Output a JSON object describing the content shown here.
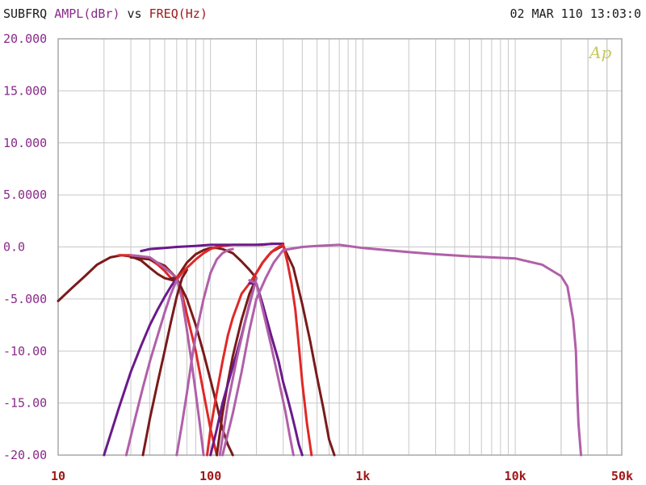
{
  "header": {
    "title_prefix": "SUBFRQ",
    "y_quantity": "AMPL(dBr)",
    "vs": "vs",
    "x_quantity": "FREQ(Hz)",
    "datetime": "02 MAR 110 13:03:0"
  },
  "logo_text": "Ap",
  "colors": {
    "dark_red": "#7a1a1a",
    "red": "#e02828",
    "purple": "#6a1a8a",
    "light_purple": "#b060a8",
    "grid": "#c8c8c8",
    "ytick": "#8a2a8a",
    "xtick": "#a01818"
  },
  "chart_data": {
    "type": "line",
    "title": "SUBFRQ AMPL(dBr) vs FREQ(Hz)",
    "xlabel": "FREQ(Hz)",
    "ylabel": "AMPL(dBr)",
    "xscale": "log",
    "xlim": [
      10,
      50000
    ],
    "ylim": [
      -20,
      20
    ],
    "grid": true,
    "y_tick_labels": [
      "20.000",
      "15.000",
      "10.000",
      "5.0000",
      "0.0",
      "-5.000",
      "-10.00",
      "-15.00",
      "-20.00"
    ],
    "y_tick_values": [
      20,
      15,
      10,
      5,
      0,
      -5,
      -10,
      -15,
      -20
    ],
    "x_tick_labels": [
      "10",
      "100",
      "1k",
      "10k",
      "50k"
    ],
    "x_tick_values": [
      10,
      100,
      1000,
      10000,
      50000
    ],
    "series": [
      {
        "color": "#7a1a1a",
        "x": [
          10,
          12,
          15,
          18,
          22,
          26,
          30,
          35,
          40,
          45,
          50,
          60
        ],
        "y": [
          -5.2,
          -4.1,
          -2.8,
          -1.7,
          -1.0,
          -0.8,
          -0.9,
          -1.3,
          -2.0,
          -2.6,
          -3.0,
          -3.3
        ]
      },
      {
        "color": "#e02828",
        "x": [
          25,
          30,
          35,
          40,
          45,
          50,
          55,
          60,
          65,
          70,
          80,
          90,
          100,
          110
        ],
        "y": [
          -0.8,
          -0.8,
          -0.9,
          -1.2,
          -1.7,
          -2.3,
          -3.0,
          -3.0,
          -4.5,
          -6.5,
          -10.0,
          -14.0,
          -17.5,
          -20.0
        ]
      },
      {
        "color": "#7a1a1a",
        "x": [
          30,
          40,
          50,
          60,
          70,
          80,
          90,
          100,
          110,
          120,
          130,
          140
        ],
        "y": [
          -1.0,
          -1.2,
          -1.8,
          -3.0,
          -5.0,
          -7.5,
          -10.2,
          -12.8,
          -15.2,
          -17.5,
          -19.0,
          -20.0
        ]
      },
      {
        "color": "#b060a8",
        "x": [
          30,
          40,
          50,
          55,
          60,
          65,
          70,
          75,
          80,
          85,
          90
        ],
        "y": [
          -0.8,
          -1.0,
          -2.0,
          -2.5,
          -3.0,
          -5.0,
          -8.0,
          -11.0,
          -14.0,
          -17.0,
          -20.0
        ]
      },
      {
        "color": "#6a1a8a",
        "x": [
          20,
          25,
          30,
          35,
          40,
          45,
          50,
          55,
          60,
          62
        ],
        "y": [
          -20.0,
          -15.5,
          -12.0,
          -9.5,
          -7.5,
          -6.0,
          -4.8,
          -3.8,
          -3.0,
          -2.8
        ]
      },
      {
        "color": "#b060a8",
        "x": [
          28,
          32,
          36,
          40,
          45,
          50,
          55,
          60,
          65
        ],
        "y": [
          -20.0,
          -16.5,
          -13.5,
          -11.0,
          -8.5,
          -6.3,
          -4.5,
          -3.2,
          -2.5
        ]
      },
      {
        "color": "#7a1a1a",
        "x": [
          36,
          40,
          45,
          50,
          55,
          60,
          65,
          70
        ],
        "y": [
          -20.0,
          -16.5,
          -13.0,
          -10.0,
          -7.2,
          -4.8,
          -3.0,
          -2.2
        ]
      },
      {
        "color": "#7a1a1a",
        "x": [
          55,
          60,
          70,
          80,
          90,
          100,
          110,
          120,
          140,
          160,
          180,
          200
        ],
        "y": [
          -3.0,
          -3.0,
          -1.5,
          -0.7,
          -0.3,
          -0.1,
          -0.1,
          -0.2,
          -0.6,
          -1.4,
          -2.2,
          -3.0
        ]
      },
      {
        "color": "#e02828",
        "x": [
          60,
          70,
          80,
          90,
          100,
          110,
          120,
          140,
          160,
          180,
          200,
          220,
          250,
          280,
          300
        ],
        "y": [
          -3.0,
          -2.0,
          -1.2,
          -0.6,
          -0.2,
          0.0,
          0.1,
          0.2,
          0.2,
          0.2,
          0.2,
          0.2,
          0.3,
          0.3,
          0.3
        ]
      },
      {
        "color": "#6a1a8a",
        "x": [
          35,
          40,
          50,
          60,
          80,
          100,
          120,
          160,
          200,
          260,
          300
        ],
        "y": [
          -0.4,
          -0.2,
          -0.1,
          0.0,
          0.1,
          0.2,
          0.2,
          0.2,
          0.2,
          0.3,
          0.3
        ]
      },
      {
        "color": "#b060a8",
        "x": [
          60,
          65,
          70,
          75,
          80,
          90,
          100,
          110,
          120,
          130,
          140
        ],
        "y": [
          -20.0,
          -17.0,
          -14.0,
          -11.0,
          -8.5,
          -5.0,
          -2.5,
          -1.2,
          -0.6,
          -0.3,
          -0.2
        ]
      },
      {
        "color": "#e02828",
        "x": [
          95,
          100,
          110,
          120,
          130,
          140,
          160,
          180,
          200
        ],
        "y": [
          -20.0,
          -17.5,
          -14.0,
          -11.0,
          -8.5,
          -6.8,
          -4.5,
          -3.5,
          -3.0
        ]
      },
      {
        "color": "#7a1a1a",
        "x": [
          110,
          120,
          130,
          140,
          160,
          180,
          200
        ],
        "y": [
          -20.0,
          -16.0,
          -13.0,
          -10.5,
          -7.0,
          -4.5,
          -3.0
        ]
      },
      {
        "color": "#6a1a8a",
        "x": [
          100,
          110,
          120,
          140,
          160,
          180,
          200
        ],
        "y": [
          -20.0,
          -17.5,
          -15.0,
          -11.5,
          -8.5,
          -5.5,
          -3.0
        ]
      },
      {
        "color": "#b060a8",
        "x": [
          115,
          130,
          150,
          170,
          200
        ],
        "y": [
          -20.0,
          -15.0,
          -10.5,
          -7.0,
          -3.0
        ]
      },
      {
        "color": "#7a1a1a",
        "x": [
          190,
          200,
          220,
          250,
          280,
          300,
          350,
          400,
          450,
          500,
          550,
          600,
          650
        ],
        "y": [
          -3.0,
          -2.5,
          -1.5,
          -0.5,
          -0.1,
          0.1,
          -2.0,
          -5.5,
          -9.0,
          -12.5,
          -15.5,
          -18.5,
          -20.0
        ]
      },
      {
        "color": "#e02828",
        "x": [
          180,
          200,
          220,
          240,
          260,
          280,
          300,
          320,
          340,
          360,
          380,
          400,
          430,
          460
        ],
        "y": [
          -3.5,
          -2.5,
          -1.5,
          -0.8,
          -0.3,
          0.0,
          0.2,
          -1.5,
          -3.5,
          -6.0,
          -9.5,
          -13.0,
          -17.0,
          -20.0
        ]
      },
      {
        "color": "#6a1a8a",
        "x": [
          180,
          200,
          220,
          250,
          280,
          300,
          320,
          340,
          360,
          380,
          400
        ],
        "y": [
          -3.5,
          -3.5,
          -5.5,
          -8.5,
          -11.0,
          -13.0,
          -14.5,
          -16.0,
          -17.5,
          -19.0,
          -20.0
        ]
      },
      {
        "color": "#b060a8",
        "x": [
          180,
          200,
          220,
          250,
          280,
          310,
          330,
          350
        ],
        "y": [
          -3.2,
          -3.5,
          -6.0,
          -9.5,
          -12.8,
          -15.8,
          -18.0,
          -20.0
        ]
      },
      {
        "color": "#b060a8",
        "x": [
          120,
          140,
          160,
          180,
          200,
          230,
          260,
          300,
          400,
          500,
          700,
          1000,
          2000,
          3000,
          5000,
          10000,
          15000,
          20000,
          22000,
          24000,
          25000,
          25500,
          26000,
          27000
        ],
        "y": [
          -20.0,
          -16.0,
          -12.0,
          -8.0,
          -5.0,
          -3.0,
          -1.5,
          -0.3,
          0.0,
          0.1,
          0.2,
          -0.1,
          -0.5,
          -0.7,
          -0.9,
          -1.1,
          -1.7,
          -2.8,
          -3.8,
          -7.0,
          -10.0,
          -14.0,
          -17.0,
          -20.0
        ]
      }
    ]
  }
}
